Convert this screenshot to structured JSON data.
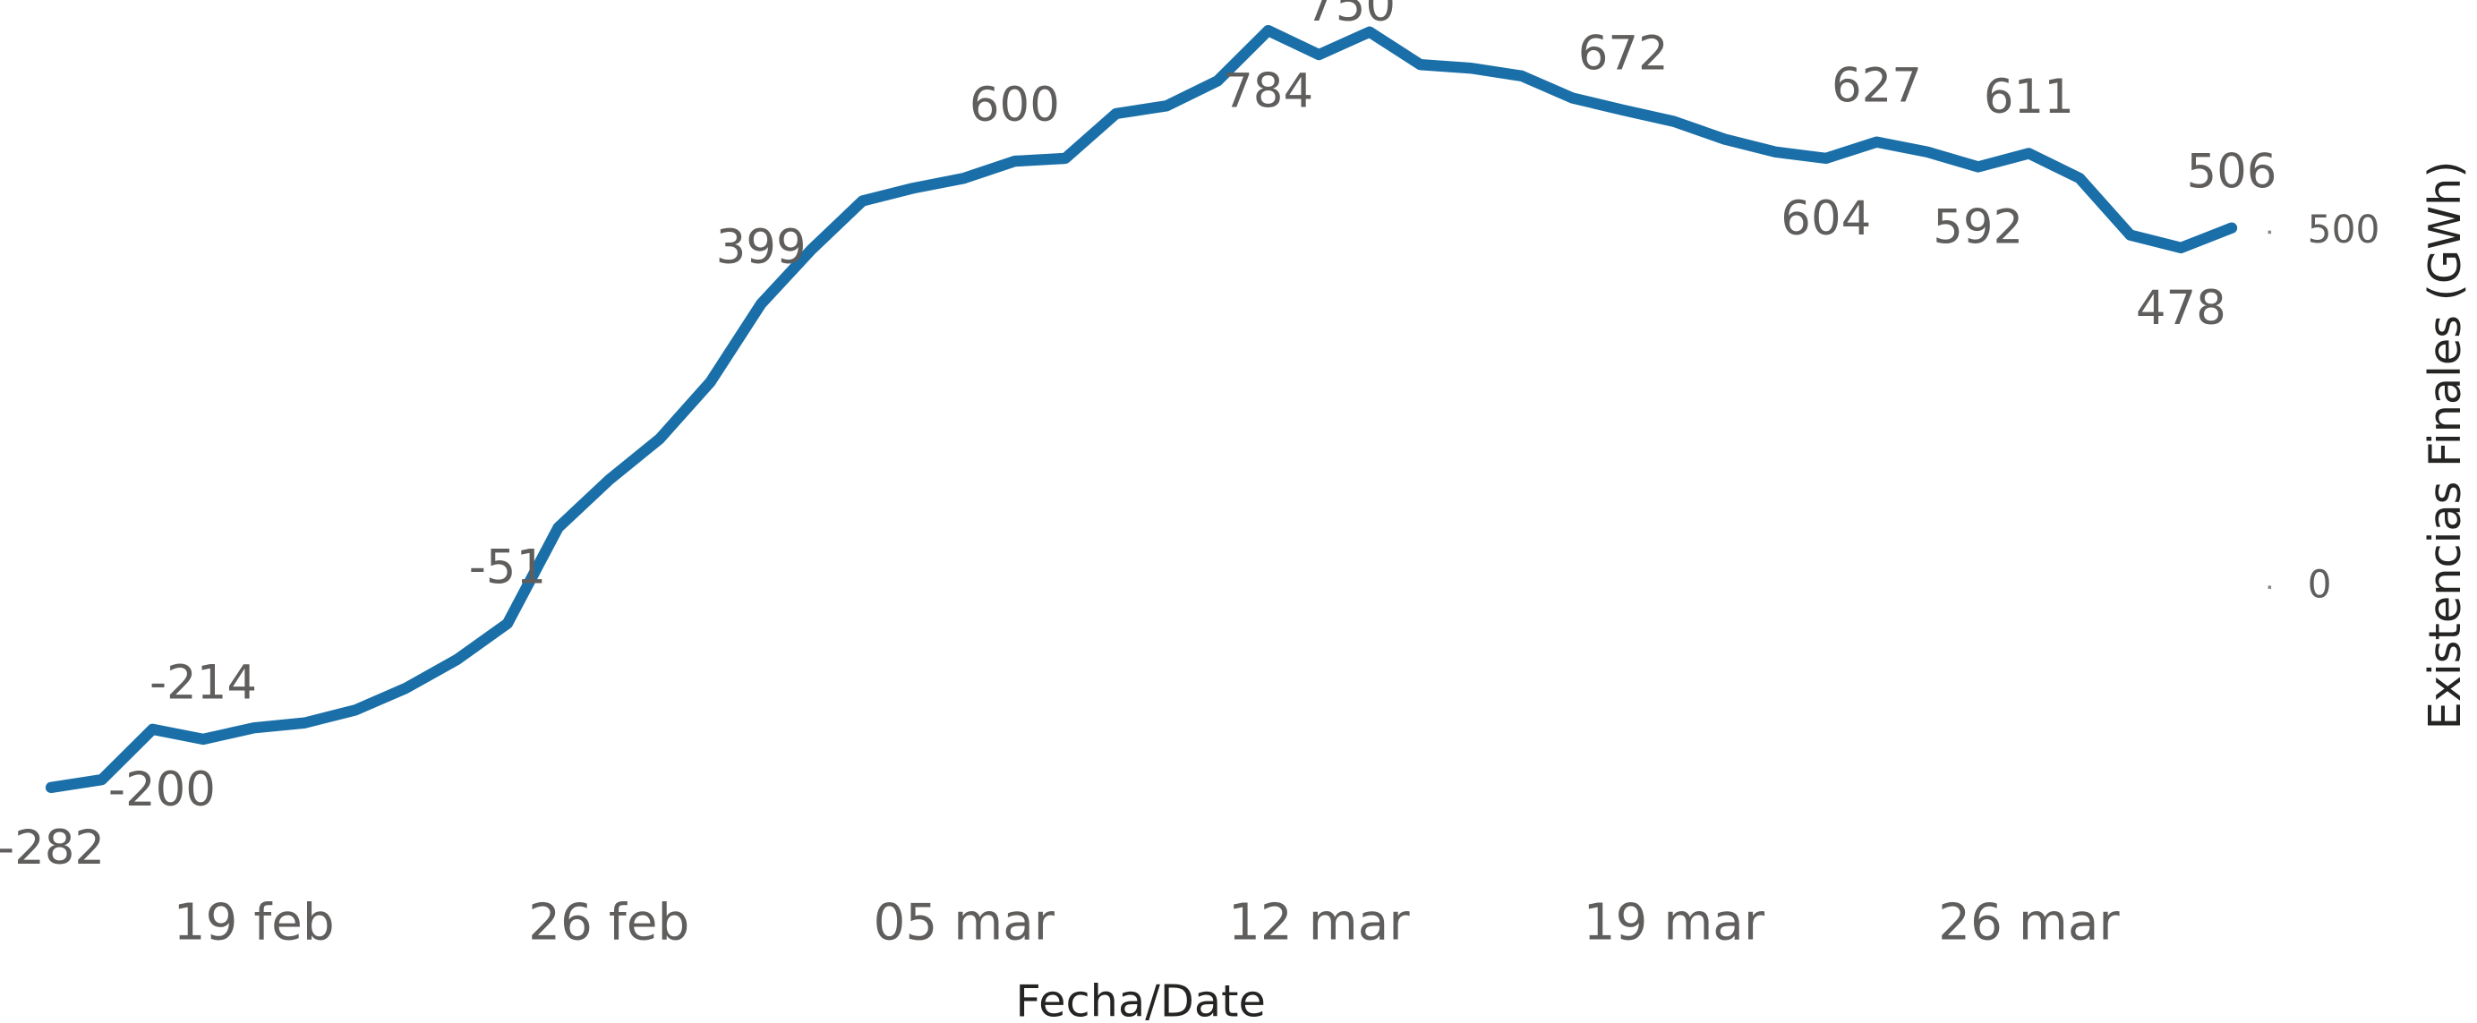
{
  "chart_data": {
    "type": "line",
    "x_label": "Fecha/Date",
    "y_label": "Existencias Finales (GWh)",
    "categories": [
      null,
      null,
      null,
      null,
      "19 feb",
      null,
      null,
      null,
      null,
      null,
      null,
      "26 feb",
      null,
      null,
      null,
      null,
      null,
      null,
      "05 mar",
      null,
      null,
      null,
      null,
      null,
      null,
      "12 mar",
      null,
      null,
      null,
      null,
      null,
      null,
      "19 mar",
      null,
      null,
      null,
      null,
      null,
      null,
      "26 mar",
      null,
      null,
      null,
      null
    ],
    "series": [
      {
        "name": "Existencias Finales (GWh)",
        "color": "#1a6fa8",
        "values": [
          -282,
          -271,
          -200,
          -214,
          -198,
          -191,
          -173,
          -142,
          -102,
          -51,
          84,
          151,
          209,
          289,
          399,
          476,
          544,
          562,
          576,
          600,
          604,
          667,
          678,
          713,
          784,
          750,
          782,
          736,
          731,
          720,
          689,
          672,
          656,
          631,
          613,
          604,
          627,
          613,
          592,
          611,
          576,
          496,
          478,
          506
        ],
        "value_labels": [
          "-282",
          null,
          "-200",
          "-214",
          null,
          null,
          null,
          null,
          null,
          "-51",
          null,
          null,
          null,
          null,
          "399",
          null,
          null,
          null,
          null,
          "600",
          null,
          null,
          null,
          null,
          "784",
          "750",
          null,
          null,
          null,
          null,
          null,
          "672",
          null,
          null,
          null,
          "604",
          "627",
          null,
          "592",
          "611",
          null,
          null,
          "478",
          "506"
        ]
      }
    ],
    "ylim": [
      -418,
      827
    ],
    "yticks": [
      0,
      500
    ],
    "y_axis_side": "right",
    "grid": false
  }
}
